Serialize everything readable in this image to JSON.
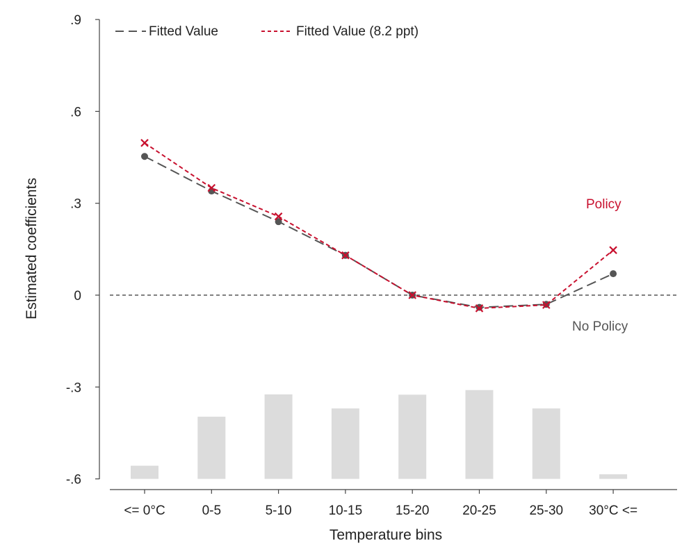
{
  "chart_data": {
    "type": "line",
    "title": "",
    "xlabel": "Temperature bins",
    "ylabel": "Estimated coefficients",
    "categories": [
      "<= 0°C",
      "0-5",
      "5-10",
      "10-15",
      "15-20",
      "20-25",
      "25-30",
      "30°C <="
    ],
    "y_ticks": [
      ".9",
      ".6",
      ".3",
      "0",
      "-.3",
      "-.6"
    ],
    "ylim": [
      -0.6,
      0.9
    ],
    "grid": false,
    "legend_position": "top-left",
    "reference_line": 0,
    "series": [
      {
        "name": "Fitted Value",
        "color": "#555555",
        "style": "long-dash",
        "marker": "dot",
        "values": [
          0.453,
          0.34,
          0.24,
          0.13,
          0.0,
          -0.04,
          -0.03,
          0.07
        ]
      },
      {
        "name": "Fitted Value (8.2 ppt)",
        "color": "#c8102e",
        "style": "short-dash",
        "marker": "x",
        "values": [
          0.497,
          0.35,
          0.257,
          0.13,
          0.0,
          -0.043,
          -0.032,
          0.147
        ]
      }
    ],
    "distribution_bars": {
      "color": "#dcdcdc",
      "values": [
        0.043,
        0.203,
        0.276,
        0.23,
        0.275,
        0.29,
        0.23,
        0.015
      ]
    },
    "annotations": [
      {
        "text": "Policy",
        "color": "#c8102e"
      },
      {
        "text": "No Policy",
        "color": "#555555"
      }
    ]
  }
}
